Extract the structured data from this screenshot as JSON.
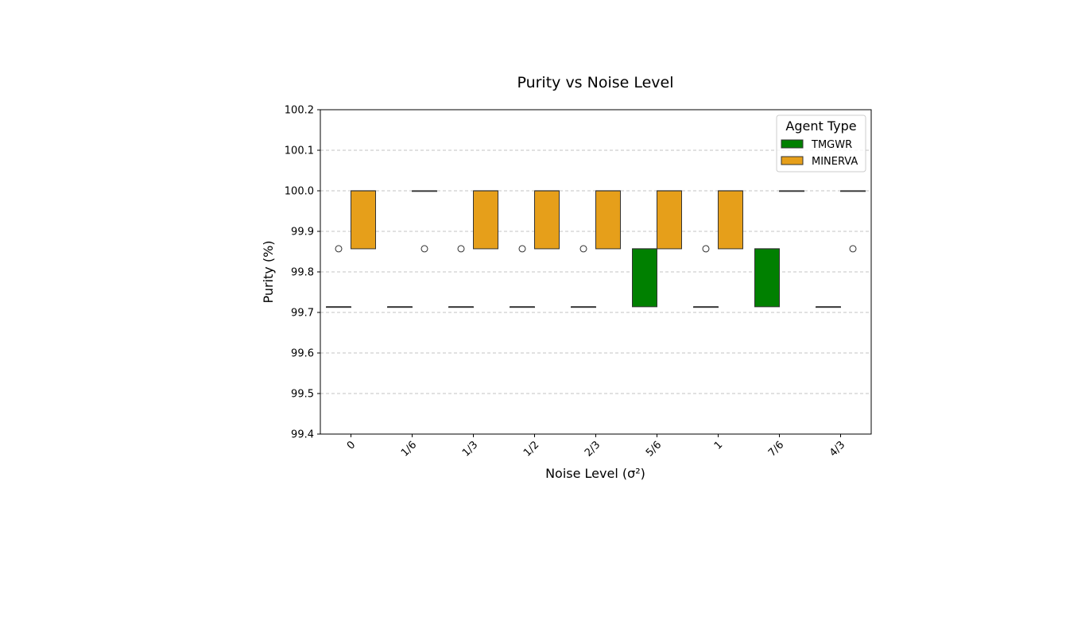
{
  "chart_data": {
    "type": "box",
    "title": "Purity vs Noise Level",
    "xlabel": "Noise Level (σ²)",
    "ylabel": "Purity (%)",
    "categories": [
      "0",
      "1/6",
      "1/3",
      "1/2",
      "2/3",
      "5/6",
      "1",
      "7/6",
      "4/3"
    ],
    "ylim": [
      99.4,
      100.2
    ],
    "yticks": [
      "99.4",
      "99.5",
      "99.6",
      "99.7",
      "99.8",
      "99.9",
      "100.0",
      "100.1",
      "100.2"
    ],
    "grid": "y-dashed",
    "legend": {
      "title": "Agent Type",
      "placement": "top-right"
    },
    "series": [
      {
        "name": "TMGWR",
        "color": "#008000",
        "boxes": [
          {
            "q1": 99.714,
            "median": 99.714,
            "q3": 99.714,
            "whisker_low": 99.714,
            "whisker_high": 99.714,
            "outliers": [
              99.857
            ]
          },
          {
            "q1": 99.714,
            "median": 99.714,
            "q3": 99.714,
            "whisker_low": 99.714,
            "whisker_high": 99.714,
            "outliers": []
          },
          {
            "q1": 99.714,
            "median": 99.714,
            "q3": 99.714,
            "whisker_low": 99.714,
            "whisker_high": 99.714,
            "outliers": [
              99.857
            ]
          },
          {
            "q1": 99.714,
            "median": 99.714,
            "q3": 99.714,
            "whisker_low": 99.714,
            "whisker_high": 99.714,
            "outliers": [
              99.857
            ]
          },
          {
            "q1": 99.714,
            "median": 99.714,
            "q3": 99.714,
            "whisker_low": 99.714,
            "whisker_high": 99.714,
            "outliers": [
              99.857
            ]
          },
          {
            "q1": 99.714,
            "median": 99.857,
            "q3": 99.857,
            "whisker_low": 99.714,
            "whisker_high": 99.857,
            "outliers": []
          },
          {
            "q1": 99.714,
            "median": 99.714,
            "q3": 99.714,
            "whisker_low": 99.714,
            "whisker_high": 99.714,
            "outliers": [
              99.857
            ]
          },
          {
            "q1": 99.714,
            "median": 99.857,
            "q3": 99.857,
            "whisker_low": 99.714,
            "whisker_high": 99.857,
            "outliers": []
          },
          {
            "q1": 99.714,
            "median": 99.714,
            "q3": 99.714,
            "whisker_low": 99.714,
            "whisker_high": 99.714,
            "outliers": []
          }
        ]
      },
      {
        "name": "MINERVA",
        "color": "#e69f1a",
        "boxes": [
          {
            "q1": 99.857,
            "median": 100.0,
            "q3": 100.0,
            "whisker_low": 99.857,
            "whisker_high": 100.0,
            "outliers": []
          },
          {
            "q1": 100.0,
            "median": 100.0,
            "q3": 100.0,
            "whisker_low": 100.0,
            "whisker_high": 100.0,
            "outliers": [
              99.857
            ]
          },
          {
            "q1": 99.857,
            "median": 100.0,
            "q3": 100.0,
            "whisker_low": 99.857,
            "whisker_high": 100.0,
            "outliers": []
          },
          {
            "q1": 99.857,
            "median": 100.0,
            "q3": 100.0,
            "whisker_low": 99.857,
            "whisker_high": 100.0,
            "outliers": []
          },
          {
            "q1": 99.857,
            "median": 100.0,
            "q3": 100.0,
            "whisker_low": 99.857,
            "whisker_high": 100.0,
            "outliers": []
          },
          {
            "q1": 99.857,
            "median": 100.0,
            "q3": 100.0,
            "whisker_low": 99.857,
            "whisker_high": 100.0,
            "outliers": []
          },
          {
            "q1": 99.857,
            "median": 100.0,
            "q3": 100.0,
            "whisker_low": 99.857,
            "whisker_high": 100.0,
            "outliers": []
          },
          {
            "q1": 100.0,
            "median": 100.0,
            "q3": 100.0,
            "whisker_low": 100.0,
            "whisker_high": 100.0,
            "outliers": []
          },
          {
            "q1": 100.0,
            "median": 100.0,
            "q3": 100.0,
            "whisker_low": 100.0,
            "whisker_high": 100.0,
            "outliers": [
              99.857
            ]
          }
        ]
      }
    ]
  }
}
